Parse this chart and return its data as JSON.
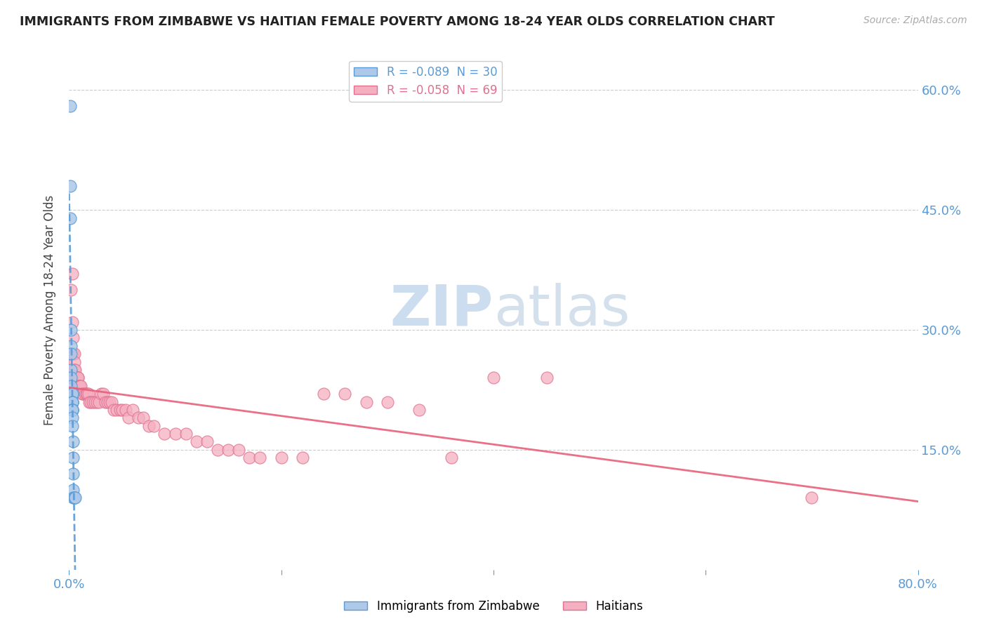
{
  "title": "IMMIGRANTS FROM ZIMBABWE VS HAITIAN FEMALE POVERTY AMONG 18-24 YEAR OLDS CORRELATION CHART",
  "source": "Source: ZipAtlas.com",
  "ylabel": "Female Poverty Among 18-24 Year Olds",
  "r1": -0.089,
  "n1": 30,
  "r2": -0.058,
  "n2": 69,
  "xlim": [
    0.0,
    0.8
  ],
  "ylim": [
    0.0,
    0.65
  ],
  "yticks": [
    0.15,
    0.3,
    0.45,
    0.6
  ],
  "ytick_labels": [
    "15.0%",
    "30.0%",
    "45.0%",
    "60.0%"
  ],
  "xtick_positions": [
    0.0,
    0.2,
    0.4,
    0.6,
    0.8
  ],
  "xtick_labels": [
    "0.0%",
    "",
    "",
    "",
    "80.0%"
  ],
  "color_zimbabwe": "#adc8e8",
  "color_haiti": "#f5afc0",
  "edge_zimbabwe": "#5b9bd5",
  "edge_haiti": "#e07090",
  "trendline_zimbabwe_color": "#5b9bd5",
  "trendline_haiti_color": "#e8607a",
  "legend1_label": "Immigrants from Zimbabwe",
  "legend2_label": "Haitians",
  "watermark_color": "#ccddf0",
  "zimbabwe_x": [
    0.001,
    0.001,
    0.001,
    0.002,
    0.002,
    0.002,
    0.002,
    0.002,
    0.002,
    0.003,
    0.003,
    0.003,
    0.003,
    0.003,
    0.003,
    0.003,
    0.003,
    0.003,
    0.003,
    0.003,
    0.003,
    0.003,
    0.004,
    0.004,
    0.004,
    0.004,
    0.004,
    0.005,
    0.005,
    0.006
  ],
  "zimbabwe_y": [
    0.58,
    0.48,
    0.44,
    0.3,
    0.28,
    0.27,
    0.25,
    0.24,
    0.23,
    0.22,
    0.22,
    0.22,
    0.22,
    0.21,
    0.21,
    0.21,
    0.2,
    0.2,
    0.2,
    0.2,
    0.19,
    0.18,
    0.16,
    0.14,
    0.12,
    0.1,
    0.09,
    0.09,
    0.09,
    0.09
  ],
  "haiti_x": [
    0.001,
    0.002,
    0.003,
    0.003,
    0.004,
    0.004,
    0.005,
    0.005,
    0.005,
    0.006,
    0.006,
    0.007,
    0.007,
    0.008,
    0.008,
    0.009,
    0.009,
    0.01,
    0.011,
    0.012,
    0.013,
    0.015,
    0.016,
    0.017,
    0.018,
    0.019,
    0.02,
    0.022,
    0.024,
    0.026,
    0.028,
    0.03,
    0.032,
    0.034,
    0.036,
    0.038,
    0.04,
    0.042,
    0.045,
    0.048,
    0.05,
    0.053,
    0.056,
    0.06,
    0.065,
    0.07,
    0.075,
    0.08,
    0.09,
    0.1,
    0.11,
    0.12,
    0.13,
    0.14,
    0.15,
    0.16,
    0.17,
    0.18,
    0.2,
    0.22,
    0.24,
    0.26,
    0.28,
    0.3,
    0.33,
    0.36,
    0.4,
    0.45,
    0.7
  ],
  "haiti_y": [
    0.27,
    0.35,
    0.37,
    0.31,
    0.29,
    0.27,
    0.27,
    0.26,
    0.25,
    0.25,
    0.24,
    0.24,
    0.24,
    0.24,
    0.24,
    0.23,
    0.23,
    0.23,
    0.23,
    0.22,
    0.22,
    0.22,
    0.22,
    0.22,
    0.22,
    0.21,
    0.21,
    0.21,
    0.21,
    0.21,
    0.21,
    0.22,
    0.22,
    0.21,
    0.21,
    0.21,
    0.21,
    0.2,
    0.2,
    0.2,
    0.2,
    0.2,
    0.19,
    0.2,
    0.19,
    0.19,
    0.18,
    0.18,
    0.17,
    0.17,
    0.17,
    0.16,
    0.16,
    0.15,
    0.15,
    0.15,
    0.14,
    0.14,
    0.14,
    0.14,
    0.22,
    0.22,
    0.21,
    0.21,
    0.2,
    0.14,
    0.24,
    0.24,
    0.09
  ]
}
